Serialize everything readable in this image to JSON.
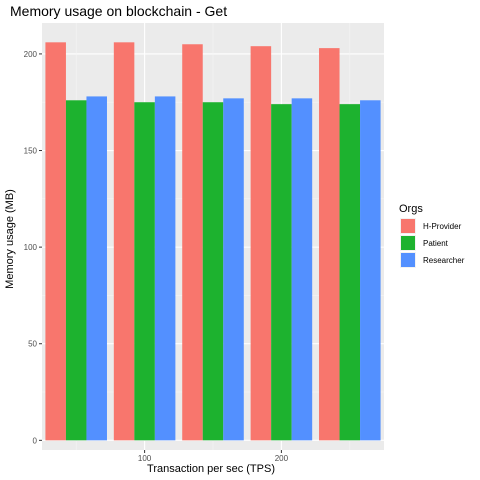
{
  "chart_data": {
    "type": "bar",
    "title": "Memory usage on blockchain - Get",
    "xlabel": "Transaction per sec (TPS)",
    "ylabel": "Memory usage (MB)",
    "x_tick_labels": [
      "100",
      "200"
    ],
    "x_tick_values": [
      100,
      200
    ],
    "x": [
      50,
      100,
      150,
      200,
      250
    ],
    "xlim": [
      25,
      275
    ],
    "ylim": [
      -5,
      216
    ],
    "y_ticks": [
      0,
      50,
      100,
      150,
      200
    ],
    "grid": true,
    "legend": {
      "title": "Orgs",
      "position": "right"
    },
    "series": [
      {
        "name": "H-Provider",
        "color": "#F8766D",
        "values": [
          206,
          206,
          205,
          204,
          203
        ]
      },
      {
        "name": "Patient",
        "color": "#1DB22F",
        "values": [
          176,
          175,
          175,
          174,
          174
        ]
      },
      {
        "name": "Researcher",
        "color": "#5390FF",
        "values": [
          178,
          178,
          177,
          177,
          176
        ]
      }
    ]
  }
}
